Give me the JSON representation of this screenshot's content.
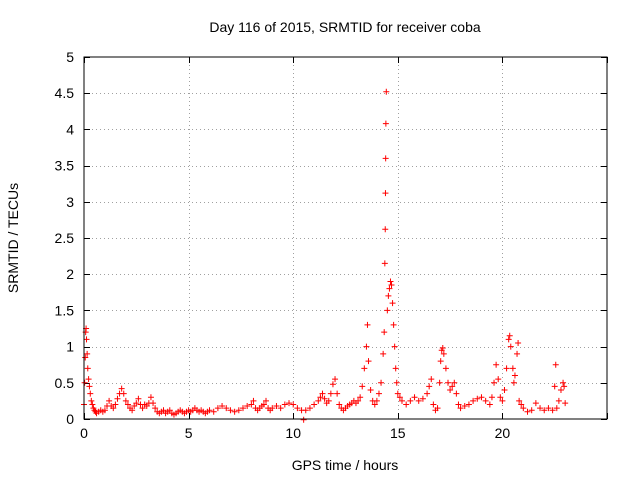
{
  "chart_data": {
    "type": "scatter",
    "title": "Day 116 of 2015, SRMTID for receiver coba",
    "xlabel": "GPS time / hours",
    "ylabel": "SRMTID / TECUs",
    "xlim": [
      0,
      25
    ],
    "ylim": [
      0,
      5
    ],
    "x_ticks": [
      0,
      5,
      10,
      15,
      20,
      25
    ],
    "x_tick_labels": [
      "0",
      "5",
      "10",
      "15",
      "20",
      ""
    ],
    "y_ticks": [
      0,
      0.5,
      1,
      1.5,
      2,
      2.5,
      3,
      3.5,
      4,
      4.5,
      5
    ],
    "y_tick_labels": [
      "0",
      "0.5",
      "1",
      "1.5",
      "2",
      "2.5",
      "3",
      "3.5",
      "4",
      "4.5",
      "5"
    ],
    "grid": true,
    "marker": "+",
    "series": [
      {
        "name": "SRMTID",
        "color": "#ff0000",
        "points": [
          [
            0.0,
            0.2
          ],
          [
            0.03,
            0.5
          ],
          [
            0.06,
            0.85
          ],
          [
            0.08,
            1.2
          ],
          [
            0.1,
            1.25
          ],
          [
            0.12,
            1.1
          ],
          [
            0.15,
            0.9
          ],
          [
            0.18,
            0.7
          ],
          [
            0.22,
            0.55
          ],
          [
            0.26,
            0.45
          ],
          [
            0.3,
            0.35
          ],
          [
            0.35,
            0.25
          ],
          [
            0.4,
            0.2
          ],
          [
            0.45,
            0.15
          ],
          [
            0.5,
            0.12
          ],
          [
            0.55,
            0.1
          ],
          [
            0.6,
            0.08
          ],
          [
            0.7,
            0.1
          ],
          [
            0.8,
            0.12
          ],
          [
            0.9,
            0.1
          ],
          [
            1.0,
            0.12
          ],
          [
            1.1,
            0.18
          ],
          [
            1.2,
            0.25
          ],
          [
            1.3,
            0.18
          ],
          [
            1.4,
            0.15
          ],
          [
            1.5,
            0.2
          ],
          [
            1.6,
            0.28
          ],
          [
            1.7,
            0.35
          ],
          [
            1.8,
            0.42
          ],
          [
            1.9,
            0.35
          ],
          [
            2.0,
            0.25
          ],
          [
            2.1,
            0.2
          ],
          [
            2.2,
            0.15
          ],
          [
            2.3,
            0.12
          ],
          [
            2.4,
            0.18
          ],
          [
            2.5,
            0.22
          ],
          [
            2.6,
            0.28
          ],
          [
            2.7,
            0.2
          ],
          [
            2.8,
            0.15
          ],
          [
            2.9,
            0.2
          ],
          [
            3.0,
            0.18
          ],
          [
            3.1,
            0.22
          ],
          [
            3.2,
            0.3
          ],
          [
            3.3,
            0.22
          ],
          [
            3.4,
            0.15
          ],
          [
            3.5,
            0.1
          ],
          [
            3.6,
            0.08
          ],
          [
            3.7,
            0.1
          ],
          [
            3.8,
            0.12
          ],
          [
            3.9,
            0.08
          ],
          [
            4.0,
            0.1
          ],
          [
            4.1,
            0.12
          ],
          [
            4.2,
            0.08
          ],
          [
            4.3,
            0.06
          ],
          [
            4.4,
            0.08
          ],
          [
            4.5,
            0.1
          ],
          [
            4.6,
            0.12
          ],
          [
            4.7,
            0.1
          ],
          [
            4.8,
            0.08
          ],
          [
            4.9,
            0.1
          ],
          [
            5.0,
            0.12
          ],
          [
            5.1,
            0.1
          ],
          [
            5.2,
            0.12
          ],
          [
            5.3,
            0.15
          ],
          [
            5.4,
            0.12
          ],
          [
            5.5,
            0.1
          ],
          [
            5.6,
            0.12
          ],
          [
            5.7,
            0.1
          ],
          [
            5.8,
            0.08
          ],
          [
            5.9,
            0.1
          ],
          [
            6.0,
            0.12
          ],
          [
            6.2,
            0.1
          ],
          [
            6.4,
            0.15
          ],
          [
            6.6,
            0.18
          ],
          [
            6.8,
            0.15
          ],
          [
            7.0,
            0.12
          ],
          [
            7.2,
            0.1
          ],
          [
            7.4,
            0.12
          ],
          [
            7.6,
            0.15
          ],
          [
            7.8,
            0.18
          ],
          [
            8.0,
            0.2
          ],
          [
            8.1,
            0.25
          ],
          [
            8.2,
            0.15
          ],
          [
            8.3,
            0.12
          ],
          [
            8.4,
            0.15
          ],
          [
            8.5,
            0.18
          ],
          [
            8.6,
            0.2
          ],
          [
            8.7,
            0.25
          ],
          [
            8.8,
            0.15
          ],
          [
            8.9,
            0.12
          ],
          [
            9.0,
            0.15
          ],
          [
            9.2,
            0.18
          ],
          [
            9.4,
            0.15
          ],
          [
            9.6,
            0.2
          ],
          [
            9.8,
            0.22
          ],
          [
            10.0,
            0.2
          ],
          [
            10.2,
            0.15
          ],
          [
            10.4,
            0.12
          ],
          [
            10.5,
            -0.01
          ],
          [
            10.6,
            0.12
          ],
          [
            10.8,
            0.15
          ],
          [
            11.0,
            0.2
          ],
          [
            11.2,
            0.25
          ],
          [
            11.3,
            0.3
          ],
          [
            11.4,
            0.35
          ],
          [
            11.5,
            0.28
          ],
          [
            11.6,
            0.22
          ],
          [
            11.7,
            0.25
          ],
          [
            11.8,
            0.35
          ],
          [
            11.9,
            0.48
          ],
          [
            12.0,
            0.55
          ],
          [
            12.1,
            0.35
          ],
          [
            12.2,
            0.2
          ],
          [
            12.3,
            0.15
          ],
          [
            12.4,
            0.12
          ],
          [
            12.5,
            0.15
          ],
          [
            12.6,
            0.18
          ],
          [
            12.7,
            0.2
          ],
          [
            12.8,
            0.22
          ],
          [
            12.9,
            0.25
          ],
          [
            13.0,
            0.22
          ],
          [
            13.1,
            0.25
          ],
          [
            13.2,
            0.3
          ],
          [
            13.3,
            0.45
          ],
          [
            13.4,
            0.7
          ],
          [
            13.5,
            1.0
          ],
          [
            13.55,
            1.3
          ],
          [
            13.6,
            0.8
          ],
          [
            13.7,
            0.4
          ],
          [
            13.8,
            0.25
          ],
          [
            13.9,
            0.2
          ],
          [
            14.0,
            0.25
          ],
          [
            14.1,
            0.35
          ],
          [
            14.2,
            0.5
          ],
          [
            14.3,
            0.9
          ],
          [
            14.35,
            1.2
          ],
          [
            14.38,
            2.15
          ],
          [
            14.4,
            2.62
          ],
          [
            14.41,
            3.12
          ],
          [
            14.42,
            3.6
          ],
          [
            14.43,
            4.08
          ],
          [
            14.45,
            4.52
          ],
          [
            14.5,
            1.5
          ],
          [
            14.55,
            1.7
          ],
          [
            14.6,
            1.8
          ],
          [
            14.65,
            1.9
          ],
          [
            14.7,
            1.85
          ],
          [
            14.75,
            1.6
          ],
          [
            14.8,
            1.3
          ],
          [
            14.85,
            1.0
          ],
          [
            14.9,
            0.7
          ],
          [
            14.95,
            0.5
          ],
          [
            15.0,
            0.35
          ],
          [
            15.1,
            0.3
          ],
          [
            15.2,
            0.25
          ],
          [
            15.4,
            0.2
          ],
          [
            15.6,
            0.25
          ],
          [
            15.8,
            0.3
          ],
          [
            16.0,
            0.25
          ],
          [
            16.2,
            0.28
          ],
          [
            16.4,
            0.35
          ],
          [
            16.5,
            0.45
          ],
          [
            16.6,
            0.55
          ],
          [
            16.7,
            0.2
          ],
          [
            16.8,
            0.12
          ],
          [
            16.9,
            0.15
          ],
          [
            17.0,
            0.5
          ],
          [
            17.05,
            0.8
          ],
          [
            17.1,
            0.95
          ],
          [
            17.15,
            0.98
          ],
          [
            17.2,
            0.9
          ],
          [
            17.3,
            0.7
          ],
          [
            17.4,
            0.5
          ],
          [
            17.5,
            0.4
          ],
          [
            17.6,
            0.45
          ],
          [
            17.7,
            0.5
          ],
          [
            17.8,
            0.35
          ],
          [
            17.9,
            0.2
          ],
          [
            18.0,
            0.15
          ],
          [
            18.2,
            0.18
          ],
          [
            18.4,
            0.2
          ],
          [
            18.6,
            0.25
          ],
          [
            18.8,
            0.28
          ],
          [
            19.0,
            0.3
          ],
          [
            19.2,
            0.25
          ],
          [
            19.4,
            0.2
          ],
          [
            19.5,
            0.3
          ],
          [
            19.6,
            0.5
          ],
          [
            19.7,
            0.75
          ],
          [
            19.8,
            0.55
          ],
          [
            19.9,
            0.3
          ],
          [
            20.0,
            0.25
          ],
          [
            20.1,
            0.4
          ],
          [
            20.2,
            0.7
          ],
          [
            20.3,
            1.1
          ],
          [
            20.35,
            1.15
          ],
          [
            20.4,
            1.0
          ],
          [
            20.5,
            0.7
          ],
          [
            20.55,
            0.5
          ],
          [
            20.6,
            0.6
          ],
          [
            20.7,
            0.9
          ],
          [
            20.75,
            1.05
          ],
          [
            20.8,
            0.25
          ],
          [
            20.9,
            0.2
          ],
          [
            21.0,
            0.15
          ],
          [
            21.2,
            0.1
          ],
          [
            21.4,
            0.12
          ],
          [
            21.6,
            0.22
          ],
          [
            21.8,
            0.15
          ],
          [
            22.0,
            0.12
          ],
          [
            22.2,
            0.15
          ],
          [
            22.4,
            0.12
          ],
          [
            22.5,
            0.45
          ],
          [
            22.55,
            0.75
          ],
          [
            22.6,
            0.15
          ],
          [
            22.7,
            0.25
          ],
          [
            22.8,
            0.4
          ],
          [
            22.9,
            0.5
          ],
          [
            22.95,
            0.45
          ],
          [
            23.0,
            0.22
          ]
        ]
      }
    ]
  }
}
